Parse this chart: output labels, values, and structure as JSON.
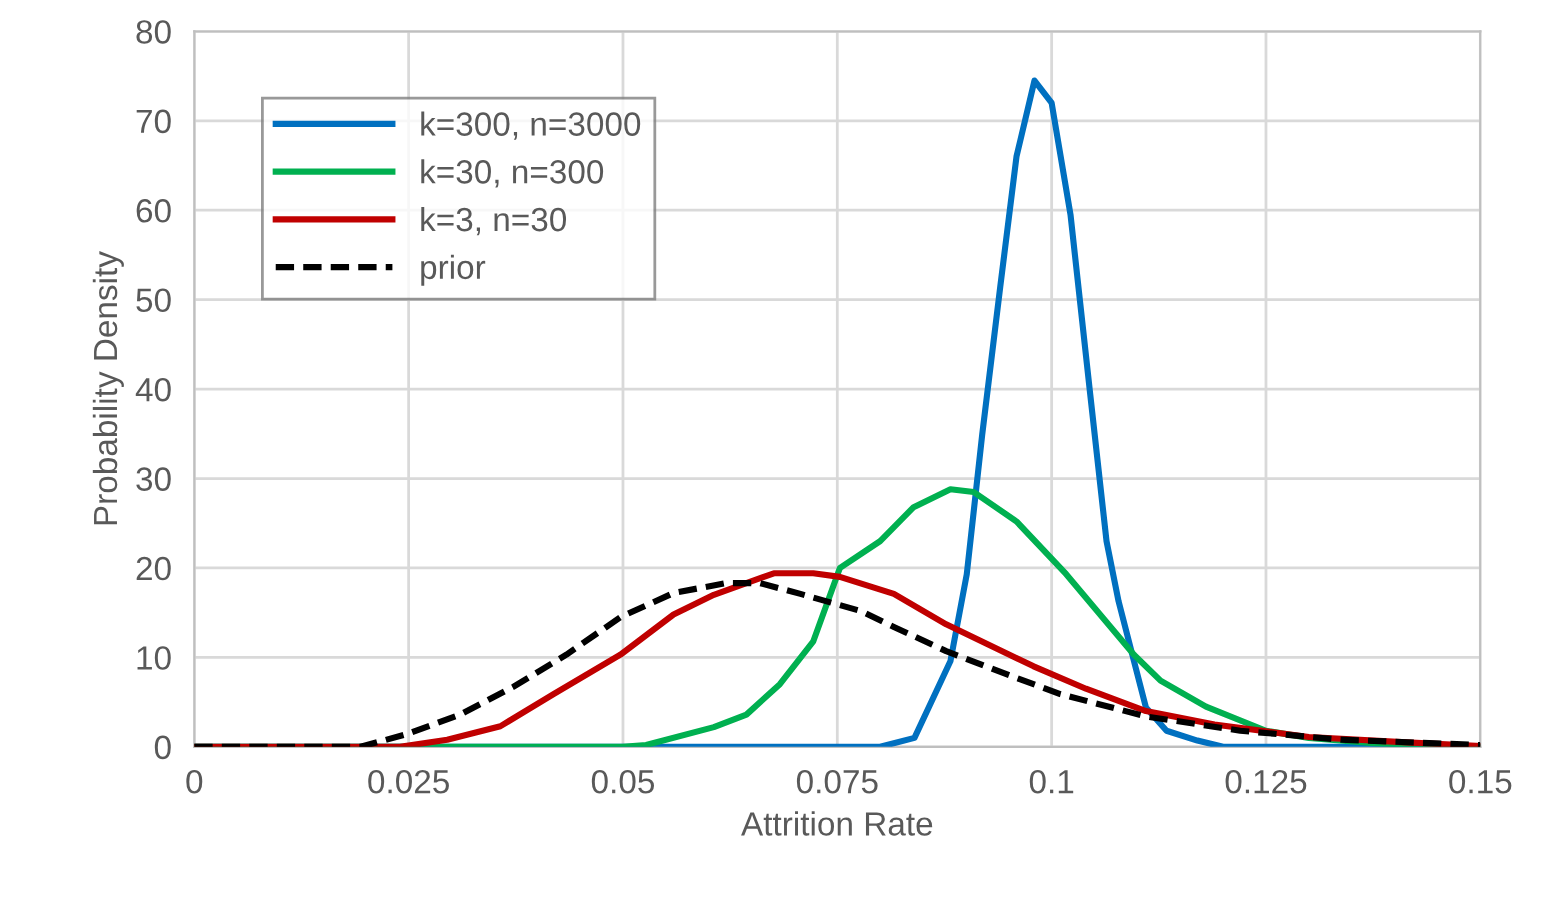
{
  "chart_data": {
    "type": "line",
    "xlabel": "Attrition Rate",
    "ylabel": "Probability Density",
    "xlim": [
      0,
      0.15
    ],
    "ylim": [
      0,
      80
    ],
    "xticks": [
      0,
      {
        "value": 0.025,
        "label": "0.025"
      },
      {
        "value": 0.05,
        "label": "0.05"
      },
      {
        "value": 0.075,
        "label": "0.075"
      },
      {
        "value": 0.1,
        "label": "0.1"
      },
      {
        "value": 0.125,
        "label": "0.125"
      },
      {
        "value": 0.15,
        "label": "0.15"
      }
    ],
    "yticks": [
      0,
      10,
      20,
      30,
      40,
      50,
      60,
      70,
      80
    ],
    "grid": true,
    "legend": "top left",
    "marker": "none",
    "series": [
      {
        "name": "k=300, n=3000",
        "color": "#0070c0",
        "line_style": "solid",
        "x": [
          0,
          0.08,
          0.084,
          0.0882,
          0.0901,
          0.0919,
          0.094,
          0.0959,
          0.098,
          0.1,
          0.1022,
          0.1045,
          0.1064,
          0.1078,
          0.1096,
          0.111,
          0.1134,
          0.117,
          0.12,
          0.15
        ],
        "values": [
          0,
          0,
          1,
          9.6,
          19.3,
          34.9,
          51.4,
          66,
          74.5,
          72,
          59.5,
          39.4,
          23,
          16.3,
          9.6,
          4.4,
          1.8,
          0.7,
          0,
          0
        ]
      },
      {
        "name": "k=30, n=300",
        "color": "#00b050",
        "line_style": "solid",
        "x": [
          0,
          0.05,
          0.0527,
          0.0606,
          0.0644,
          0.0683,
          0.0722,
          0.0753,
          0.08,
          0.0839,
          0.0882,
          0.0909,
          0.0959,
          0.1017,
          0.1096,
          0.1127,
          0.118,
          0.125,
          0.13,
          0.1376,
          0.15
        ],
        "values": [
          0,
          0,
          0.2,
          2.2,
          3.6,
          7,
          11.8,
          20,
          23,
          26.8,
          28.8,
          28.5,
          25.2,
          19.3,
          10.3,
          7.4,
          4.5,
          1.8,
          1,
          0.4,
          0
        ]
      },
      {
        "name": "k=3, n=30",
        "color": "#c00000",
        "line_style": "solid",
        "x": [
          0,
          0.024,
          0.0295,
          0.0357,
          0.0419,
          0.0497,
          0.0559,
          0.0606,
          0.0676,
          0.0722,
          0.0753,
          0.0816,
          0.0877,
          0.0979,
          0.104,
          0.111,
          0.119,
          0.13,
          0.1414,
          0.15
        ],
        "values": [
          0,
          0,
          0.8,
          2.3,
          5.9,
          10.3,
          14.8,
          17,
          19.4,
          19.4,
          19,
          17.1,
          13.7,
          9,
          6.5,
          4,
          2.5,
          1.1,
          0.5,
          0.1
        ]
      },
      {
        "name": "prior",
        "color": "#000000",
        "line_style": "dashed",
        "x": [
          0,
          0.0194,
          0.0247,
          0.031,
          0.0372,
          0.0434,
          0.0497,
          0.0559,
          0.062,
          0.066,
          0.0707,
          0.0777,
          0.0816,
          0.0877,
          0.0956,
          0.101,
          0.111,
          0.122,
          0.1337,
          0.15
        ],
        "values": [
          0,
          0,
          1.4,
          3.6,
          6.7,
          10.3,
          14.5,
          17.2,
          18.3,
          18.3,
          17.1,
          15.2,
          13.4,
          10.7,
          7.8,
          5.9,
          3.4,
          1.8,
          0.8,
          0.2
        ]
      }
    ]
  }
}
